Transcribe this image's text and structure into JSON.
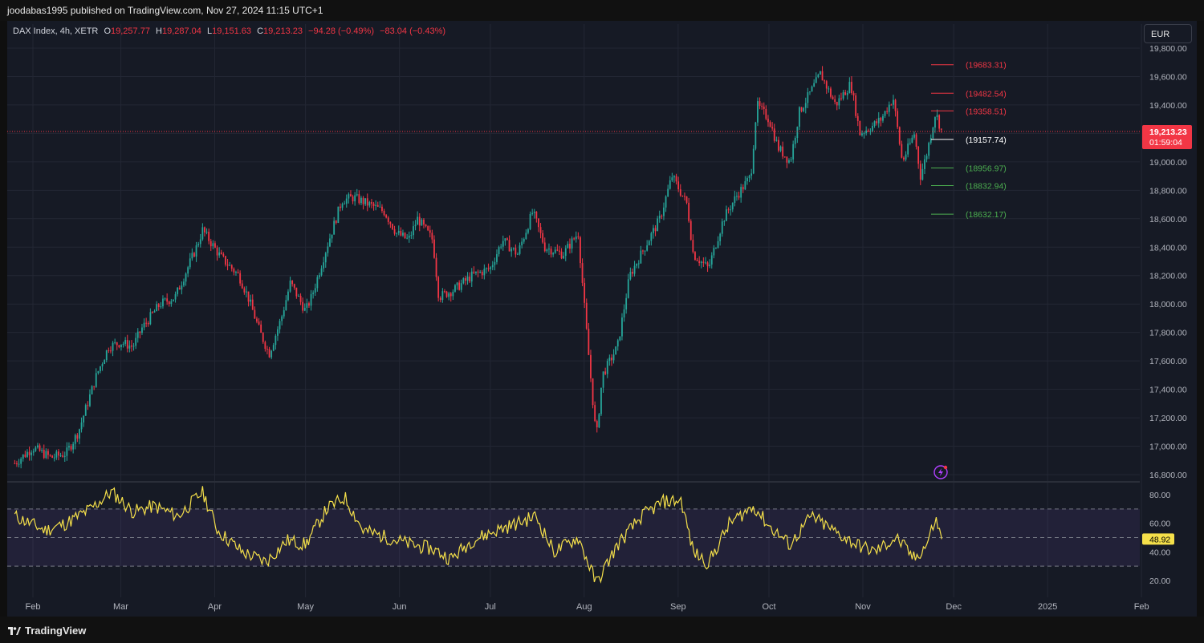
{
  "header": {
    "published": "joodabas1995 published on TradingView.com, Nov 27, 2024 11:15 UTC+1"
  },
  "legend": {
    "symbol": "DAX Index, 4h, XETR",
    "o_label": "O",
    "o_value": "19,257.77",
    "h_label": "H",
    "h_value": "19,287.04",
    "l_label": "L",
    "l_value": "19,151.63",
    "c_label": "C",
    "c_value": "19,213.23",
    "change": "−94.28 (−0.49%)",
    "change2": "−83.04 (−0.43%)"
  },
  "currency": "EUR",
  "price_axis": {
    "ticks": [
      "19,800.00",
      "19,600.00",
      "19,400.00",
      "19,200.00",
      "19,000.00",
      "18,800.00",
      "18,600.00",
      "18,400.00",
      "18,200.00",
      "18,000.00",
      "17,800.00",
      "17,600.00",
      "17,400.00",
      "17,200.00",
      "17,000.00",
      "16,800.00"
    ],
    "tick_values": [
      19800,
      19600,
      19400,
      19200,
      19000,
      18800,
      18600,
      18400,
      18200,
      18000,
      17800,
      17600,
      17400,
      17200,
      17000,
      16800
    ],
    "current_price": "19,213.23",
    "current_value": 19213.23,
    "countdown": "01:59:04"
  },
  "levels": [
    {
      "label": "(19683.31)",
      "value": 19683.31,
      "color": "#f23645"
    },
    {
      "label": "(19482.54)",
      "value": 19482.54,
      "color": "#f23645"
    },
    {
      "label": "(19358.51)",
      "value": 19358.51,
      "color": "#f23645"
    },
    {
      "label": "(19157.74)",
      "value": 19157.74,
      "color": "#ffffff"
    },
    {
      "label": "(18956.97)",
      "value": 18956.97,
      "color": "#4caf50"
    },
    {
      "label": "(18832.94)",
      "value": 18832.94,
      "color": "#4caf50"
    },
    {
      "label": "(18632.17)",
      "value": 18632.17,
      "color": "#4caf50"
    }
  ],
  "rsi": {
    "ticks": [
      "80.00",
      "60.00",
      "40.00",
      "20.00"
    ],
    "tick_values": [
      80,
      60,
      40,
      20
    ],
    "current": "48.92",
    "current_value": 48.92,
    "upper_band": 70,
    "middle": 50,
    "lower_band": 30,
    "line_color": "#f5e04a"
  },
  "time_axis": [
    "Feb",
    "Mar",
    "Apr",
    "May",
    "Jun",
    "Jul",
    "Aug",
    "Sep",
    "Oct",
    "Nov",
    "Dec",
    "2025",
    "Feb"
  ],
  "footer": {
    "brand": "TradingView"
  },
  "colors": {
    "up": "#26a69a",
    "down": "#f23645",
    "background": "#161a25",
    "rsi_band": "#7e57c2"
  },
  "chart_data": {
    "type": "candlestick",
    "price_path": [
      [
        "2024-01-26",
        16880
      ],
      [
        "2024-02-01",
        16990
      ],
      [
        "2024-02-07",
        16920
      ],
      [
        "2024-02-12",
        16950
      ],
      [
        "2024-02-16",
        17100
      ],
      [
        "2024-02-22",
        17500
      ],
      [
        "2024-02-26",
        17700
      ],
      [
        "2024-03-01",
        17730
      ],
      [
        "2024-03-05",
        17700
      ],
      [
        "2024-03-08",
        17830
      ],
      [
        "2024-03-14",
        18000
      ],
      [
        "2024-03-19",
        18050
      ],
      [
        "2024-03-22",
        18200
      ],
      [
        "2024-03-26",
        18400
      ],
      [
        "2024-03-28",
        18520
      ],
      [
        "2024-04-03",
        18330
      ],
      [
        "2024-04-09",
        18200
      ],
      [
        "2024-04-12",
        18050
      ],
      [
        "2024-04-16",
        17800
      ],
      [
        "2024-04-19",
        17650
      ],
      [
        "2024-04-23",
        17900
      ],
      [
        "2024-04-26",
        18150
      ],
      [
        "2024-05-01",
        17950
      ],
      [
        "2024-05-03",
        18050
      ],
      [
        "2024-05-08",
        18400
      ],
      [
        "2024-05-13",
        18730
      ],
      [
        "2024-05-17",
        18750
      ],
      [
        "2024-05-22",
        18700
      ],
      [
        "2024-05-27",
        18650
      ],
      [
        "2024-05-31",
        18500
      ],
      [
        "2024-06-04",
        18450
      ],
      [
        "2024-06-07",
        18600
      ],
      [
        "2024-06-12",
        18450
      ],
      [
        "2024-06-14",
        18050
      ],
      [
        "2024-06-19",
        18100
      ],
      [
        "2024-06-25",
        18200
      ],
      [
        "2024-07-01",
        18250
      ],
      [
        "2024-07-05",
        18450
      ],
      [
        "2024-07-10",
        18350
      ],
      [
        "2024-07-15",
        18650
      ],
      [
        "2024-07-19",
        18400
      ],
      [
        "2024-07-25",
        18350
      ],
      [
        "2024-07-30",
        18500
      ],
      [
        "2024-08-02",
        17750
      ],
      [
        "2024-08-05",
        17050
      ],
      [
        "2024-08-07",
        17500
      ],
      [
        "2024-08-12",
        17700
      ],
      [
        "2024-08-16",
        18200
      ],
      [
        "2024-08-21",
        18400
      ],
      [
        "2024-08-26",
        18600
      ],
      [
        "2024-08-30",
        18900
      ],
      [
        "2024-09-04",
        18700
      ],
      [
        "2024-09-06",
        18350
      ],
      [
        "2024-09-11",
        18250
      ],
      [
        "2024-09-16",
        18600
      ],
      [
        "2024-09-20",
        18750
      ],
      [
        "2024-09-25",
        18900
      ],
      [
        "2024-09-27",
        19400
      ],
      [
        "2024-10-01",
        19300
      ],
      [
        "2024-10-04",
        19100
      ],
      [
        "2024-10-08",
        19000
      ],
      [
        "2024-10-11",
        19350
      ],
      [
        "2024-10-15",
        19500
      ],
      [
        "2024-10-18",
        19620
      ],
      [
        "2024-10-23",
        19400
      ],
      [
        "2024-10-28",
        19550
      ],
      [
        "2024-10-31",
        19200
      ],
      [
        "2024-11-04",
        19250
      ],
      [
        "2024-11-07",
        19300
      ],
      [
        "2024-11-11",
        19450
      ],
      [
        "2024-11-14",
        19000
      ],
      [
        "2024-11-18",
        19200
      ],
      [
        "2024-11-20",
        18900
      ],
      [
        "2024-11-22",
        19050
      ],
      [
        "2024-11-25",
        19350
      ],
      [
        "2024-11-27",
        19213
      ]
    ],
    "rsi_path": [
      [
        "2024-01-26",
        65
      ],
      [
        "2024-02-05",
        55
      ],
      [
        "2024-02-12",
        60
      ],
      [
        "2024-02-20",
        70
      ],
      [
        "2024-02-27",
        82
      ],
      [
        "2024-03-05",
        68
      ],
      [
        "2024-03-12",
        72
      ],
      [
        "2024-03-20",
        65
      ],
      [
        "2024-03-28",
        82
      ],
      [
        "2024-04-02",
        55
      ],
      [
        "2024-04-10",
        40
      ],
      [
        "2024-04-18",
        33
      ],
      [
        "2024-04-25",
        48
      ],
      [
        "2024-05-01",
        45
      ],
      [
        "2024-05-08",
        70
      ],
      [
        "2024-05-14",
        78
      ],
      [
        "2024-05-20",
        55
      ],
      [
        "2024-05-28",
        50
      ],
      [
        "2024-06-05",
        45
      ],
      [
        "2024-06-12",
        42
      ],
      [
        "2024-06-18",
        35
      ],
      [
        "2024-06-25",
        48
      ],
      [
        "2024-07-03",
        55
      ],
      [
        "2024-07-10",
        60
      ],
      [
        "2024-07-16",
        65
      ],
      [
        "2024-07-22",
        40
      ],
      [
        "2024-07-30",
        50
      ],
      [
        "2024-08-05",
        18
      ],
      [
        "2024-08-12",
        45
      ],
      [
        "2024-08-20",
        65
      ],
      [
        "2024-08-27",
        75
      ],
      [
        "2024-09-02",
        76
      ],
      [
        "2024-09-06",
        40
      ],
      [
        "2024-09-11",
        32
      ],
      [
        "2024-09-18",
        60
      ],
      [
        "2024-09-26",
        72
      ],
      [
        "2024-10-01",
        58
      ],
      [
        "2024-10-08",
        45
      ],
      [
        "2024-10-15",
        65
      ],
      [
        "2024-10-22",
        55
      ],
      [
        "2024-10-30",
        45
      ],
      [
        "2024-11-05",
        40
      ],
      [
        "2024-11-12",
        50
      ],
      [
        "2024-11-18",
        35
      ],
      [
        "2024-11-22",
        45
      ],
      [
        "2024-11-25",
        63
      ],
      [
        "2024-11-27",
        48.92
      ]
    ]
  }
}
